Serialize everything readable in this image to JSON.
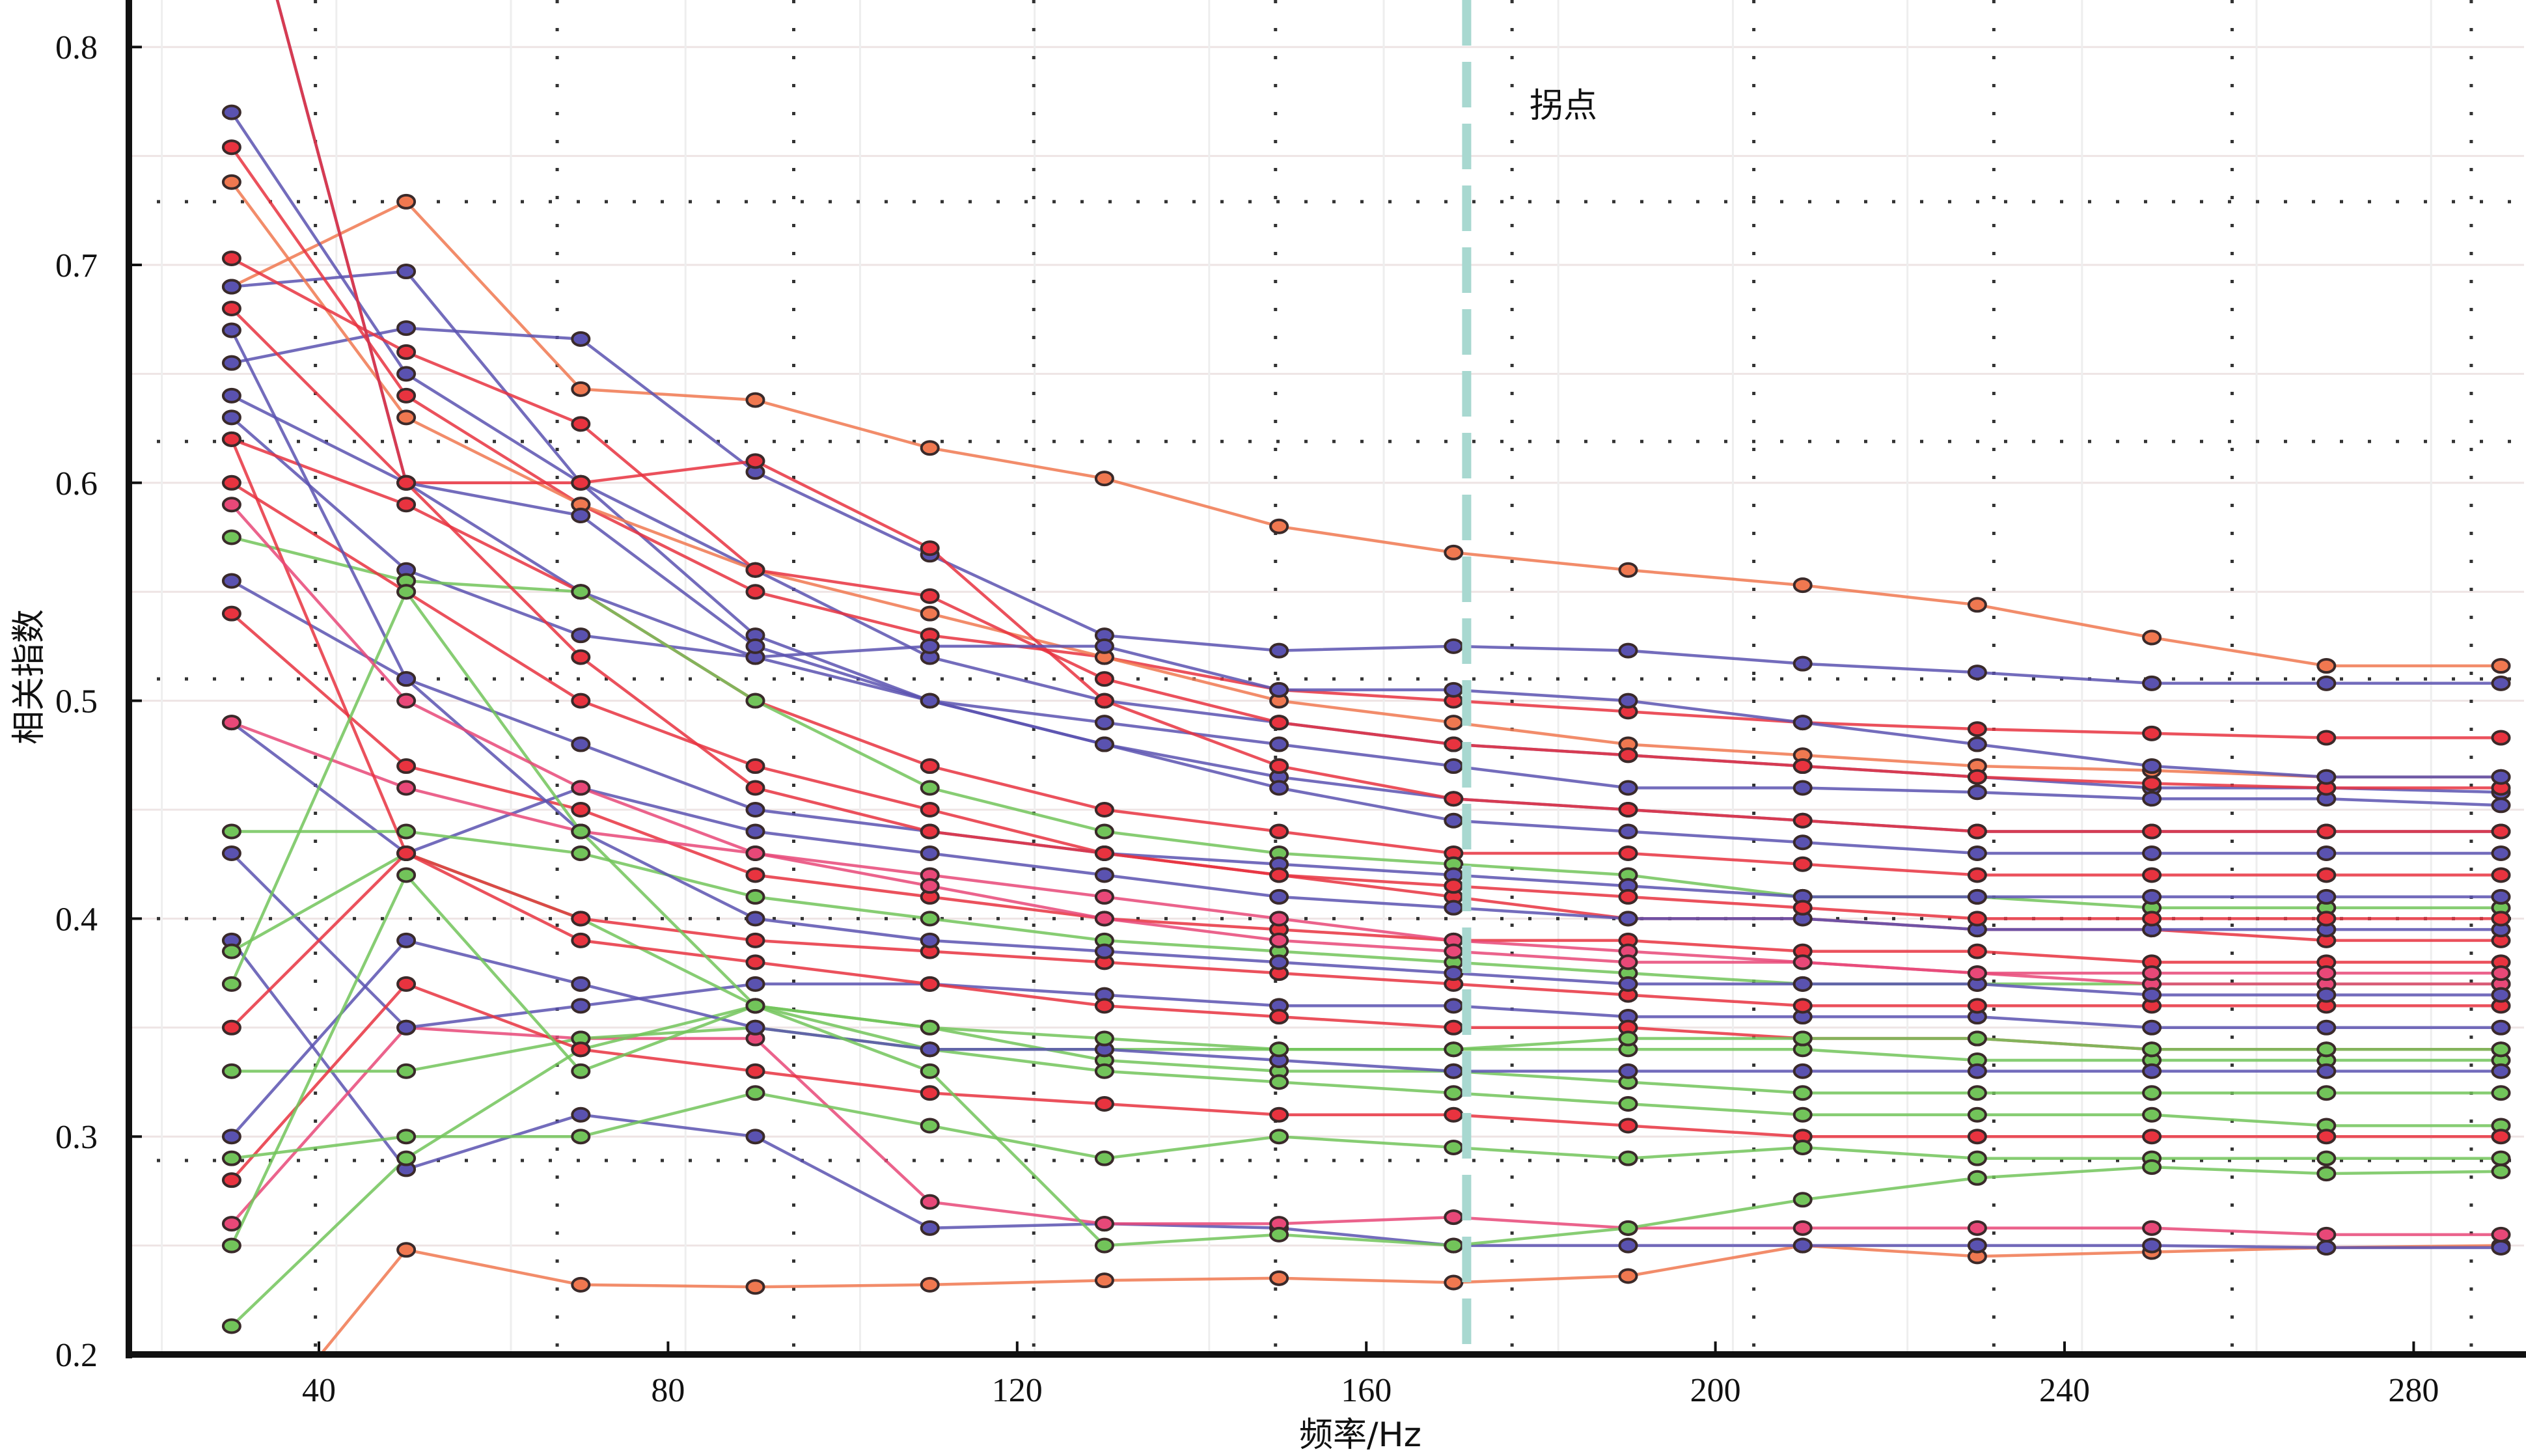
{
  "chart_data": {
    "type": "line",
    "title": "",
    "xlabel": "频率/Hz",
    "ylabel": "相关指数",
    "xlim": [
      20.2,
      294
    ],
    "ylim": [
      0.2,
      0.82
    ],
    "xticks": [
      40,
      80,
      120,
      160,
      200,
      240,
      280
    ],
    "xtick_labels": [
      "40",
      "80",
      "120",
      "160",
      "200",
      "240",
      "280"
    ],
    "yticks": [
      0.2,
      0.3,
      0.4,
      0.5,
      0.6,
      0.7,
      0.8
    ],
    "ytick_labels": [
      "0.2",
      "0.3",
      "0.4",
      "0.5",
      "0.6",
      "0.7",
      "0.8"
    ],
    "grid": true,
    "reference_hlines": [
      0.729,
      0.619,
      0.51,
      0.4,
      0.289
    ],
    "reference_vlines": [
      39.6,
      67.3,
      94.4,
      121.9,
      149.6,
      176.7,
      204.4,
      231.9,
      259.2,
      286.6
    ],
    "knee": {
      "x": 171.5,
      "label": "拐点",
      "color": "#a8d8d0"
    },
    "colors": {
      "red": "#e8333f",
      "orange": "#f07850",
      "pink": "#e84878",
      "blue": "#5a52b0",
      "green": "#72c45a"
    },
    "x": [
      30,
      50,
      70,
      90,
      110,
      130,
      150,
      170,
      190,
      210,
      230,
      250,
      270,
      290
    ],
    "series": [
      {
        "color": "orange",
        "values": [
          0.69,
          0.729,
          0.643,
          0.638,
          0.616,
          0.602,
          0.58,
          0.568,
          0.56,
          0.553,
          0.544,
          0.529,
          0.516,
          0.516
        ]
      },
      {
        "color": "orange",
        "values": [
          0.15,
          0.248,
          0.232,
          0.231,
          0.232,
          0.234,
          0.235,
          0.233,
          0.236,
          0.25,
          0.245,
          0.247,
          0.249,
          0.25
        ]
      },
      {
        "color": "blue",
        "values": [
          0.77,
          0.65,
          0.6,
          0.53,
          0.5,
          0.48,
          0.465,
          0.455,
          0.45,
          0.445,
          0.44,
          0.44,
          0.44,
          0.44
        ]
      },
      {
        "color": "blue",
        "values": [
          0.69,
          0.697,
          0.6,
          0.56,
          0.52,
          0.5,
          0.49,
          0.48,
          0.475,
          0.47,
          0.465,
          0.46,
          0.46,
          0.458
        ]
      },
      {
        "color": "blue",
        "values": [
          0.655,
          0.671,
          0.666,
          0.605,
          0.567,
          0.53,
          0.523,
          0.525,
          0.523,
          0.517,
          0.513,
          0.508,
          0.508,
          0.508
        ]
      },
      {
        "color": "blue",
        "values": [
          0.39,
          0.285,
          0.31,
          0.3,
          0.258,
          0.26,
          0.258,
          0.25,
          0.25,
          0.25,
          0.25,
          0.25,
          0.249,
          0.249
        ]
      },
      {
        "color": "pink",
        "values": [
          0.26,
          0.35,
          0.345,
          0.345,
          0.27,
          0.26,
          0.26,
          0.263,
          0.258,
          0.258,
          0.258,
          0.258,
          0.255,
          0.255
        ]
      },
      {
        "color": "green",
        "values": [
          0.213,
          0.29,
          0.34,
          0.36,
          0.35,
          0.335,
          0.33,
          0.33,
          0.325,
          0.32,
          0.32,
          0.32,
          0.32,
          0.32
        ]
      },
      {
        "color": "red",
        "values": [
          0.754,
          0.64,
          0.59,
          0.55,
          0.53,
          0.52,
          0.505,
          0.5,
          0.495,
          0.49,
          0.487,
          0.485,
          0.483,
          0.483
        ]
      },
      {
        "color": "orange",
        "values": [
          0.738,
          0.63,
          0.59,
          0.56,
          0.54,
          0.52,
          0.5,
          0.49,
          0.48,
          0.475,
          0.47,
          0.468,
          0.465,
          0.465
        ]
      },
      {
        "color": "blue",
        "values": [
          0.64,
          0.6,
          0.55,
          0.52,
          0.5,
          0.49,
          0.48,
          0.47,
          0.46,
          0.46,
          0.458,
          0.455,
          0.455,
          0.452
        ]
      },
      {
        "color": "red",
        "values": [
          0.703,
          0.66,
          0.627,
          0.56,
          0.548,
          0.51,
          0.49,
          0.48,
          0.475,
          0.47,
          0.465,
          0.462,
          0.46,
          0.46
        ]
      },
      {
        "color": "red",
        "values": [
          0.68,
          0.6,
          0.6,
          0.61,
          0.57,
          0.5,
          0.47,
          0.455,
          0.45,
          0.445,
          0.44,
          0.44,
          0.44,
          0.44
        ]
      },
      {
        "color": "blue",
        "values": [
          0.63,
          0.56,
          0.53,
          0.52,
          0.525,
          0.525,
          0.505,
          0.505,
          0.5,
          0.49,
          0.48,
          0.47,
          0.465,
          0.465
        ]
      },
      {
        "color": "red",
        "values": [
          0.62,
          0.59,
          0.55,
          0.5,
          0.47,
          0.45,
          0.44,
          0.43,
          0.43,
          0.425,
          0.42,
          0.42,
          0.42,
          0.42
        ]
      },
      {
        "color": "green",
        "values": [
          0.575,
          0.555,
          0.55,
          0.5,
          0.46,
          0.44,
          0.43,
          0.425,
          0.42,
          0.41,
          0.41,
          0.405,
          0.405,
          0.405
        ]
      },
      {
        "color": "red",
        "values": [
          0.6,
          0.55,
          0.5,
          0.47,
          0.45,
          0.43,
          0.42,
          0.41,
          0.4,
          0.4,
          0.395,
          0.395,
          0.39,
          0.39
        ]
      },
      {
        "color": "blue",
        "values": [
          0.555,
          0.51,
          0.48,
          0.45,
          0.44,
          0.43,
          0.425,
          0.42,
          0.415,
          0.41,
          0.41,
          0.41,
          0.41,
          0.41
        ]
      },
      {
        "color": "red",
        "values": [
          0.54,
          0.47,
          0.45,
          0.42,
          0.41,
          0.4,
          0.395,
          0.39,
          0.39,
          0.385,
          0.385,
          0.38,
          0.38,
          0.38
        ]
      },
      {
        "color": "blue",
        "values": [
          0.49,
          0.43,
          0.46,
          0.44,
          0.43,
          0.42,
          0.41,
          0.405,
          0.4,
          0.4,
          0.395,
          0.395,
          0.395,
          0.395
        ]
      },
      {
        "color": "green",
        "values": [
          0.44,
          0.44,
          0.43,
          0.41,
          0.4,
          0.39,
          0.385,
          0.38,
          0.375,
          0.37,
          0.37,
          0.37,
          0.37,
          0.37
        ]
      },
      {
        "color": "pink",
        "values": [
          0.49,
          0.46,
          0.44,
          0.43,
          0.42,
          0.41,
          0.4,
          0.39,
          0.385,
          0.38,
          0.375,
          0.37,
          0.37,
          0.37
        ]
      },
      {
        "color": "blue",
        "values": [
          0.43,
          0.35,
          0.36,
          0.37,
          0.37,
          0.365,
          0.36,
          0.36,
          0.355,
          0.355,
          0.355,
          0.35,
          0.35,
          0.35
        ]
      },
      {
        "color": "green",
        "values": [
          0.385,
          0.43,
          0.4,
          0.36,
          0.34,
          0.34,
          0.34,
          0.34,
          0.34,
          0.34,
          0.335,
          0.335,
          0.335,
          0.335
        ]
      },
      {
        "color": "red",
        "values": [
          0.35,
          0.43,
          0.39,
          0.38,
          0.37,
          0.36,
          0.355,
          0.35,
          0.35,
          0.345,
          0.345,
          0.34,
          0.34,
          0.34
        ]
      },
      {
        "color": "green",
        "values": [
          0.33,
          0.33,
          0.345,
          0.35,
          0.34,
          0.33,
          0.325,
          0.32,
          0.315,
          0.31,
          0.31,
          0.31,
          0.305,
          0.305
        ]
      },
      {
        "color": "red",
        "values": [
          0.28,
          0.37,
          0.34,
          0.33,
          0.32,
          0.315,
          0.31,
          0.31,
          0.305,
          0.3,
          0.3,
          0.3,
          0.3,
          0.3
        ]
      },
      {
        "color": "blue",
        "values": [
          0.3,
          0.39,
          0.37,
          0.35,
          0.34,
          0.34,
          0.335,
          0.33,
          0.33,
          0.33,
          0.33,
          0.33,
          0.33,
          0.33
        ]
      },
      {
        "color": "green",
        "values": [
          0.29,
          0.3,
          0.3,
          0.32,
          0.305,
          0.29,
          0.3,
          0.295,
          0.29,
          0.295,
          0.29,
          0.29,
          0.29,
          0.29
        ]
      },
      {
        "color": "green",
        "values": [
          0.25,
          0.42,
          0.33,
          0.36,
          0.33,
          0.25,
          0.255,
          0.25,
          0.258,
          0.271,
          0.281,
          0.286,
          0.283,
          0.284
        ]
      },
      {
        "color": "red",
        "values": [
          0.62,
          0.43,
          0.4,
          0.39,
          0.385,
          0.38,
          0.375,
          0.37,
          0.365,
          0.36,
          0.36,
          0.36,
          0.36,
          0.36
        ]
      },
      {
        "color": "blue",
        "values": [
          0.9,
          0.6,
          0.585,
          0.525,
          0.5,
          0.48,
          0.46,
          0.445,
          0.44,
          0.435,
          0.43,
          0.43,
          0.43,
          0.43
        ]
      },
      {
        "color": "red",
        "values": [
          0.9,
          0.6,
          0.52,
          0.46,
          0.44,
          0.43,
          0.42,
          0.415,
          0.41,
          0.405,
          0.4,
          0.4,
          0.4,
          0.4
        ]
      },
      {
        "color": "blue",
        "values": [
          0.67,
          0.51,
          0.44,
          0.4,
          0.39,
          0.385,
          0.38,
          0.375,
          0.37,
          0.37,
          0.37,
          0.365,
          0.365,
          0.365
        ]
      },
      {
        "color": "green",
        "values": [
          0.37,
          0.55,
          0.44,
          0.36,
          0.35,
          0.345,
          0.34,
          0.34,
          0.345,
          0.345,
          0.345,
          0.34,
          0.34,
          0.34
        ]
      },
      {
        "color": "pink",
        "values": [
          0.59,
          0.5,
          0.46,
          0.43,
          0.415,
          0.4,
          0.39,
          0.385,
          0.38,
          0.38,
          0.375,
          0.375,
          0.375,
          0.375
        ]
      }
    ]
  }
}
